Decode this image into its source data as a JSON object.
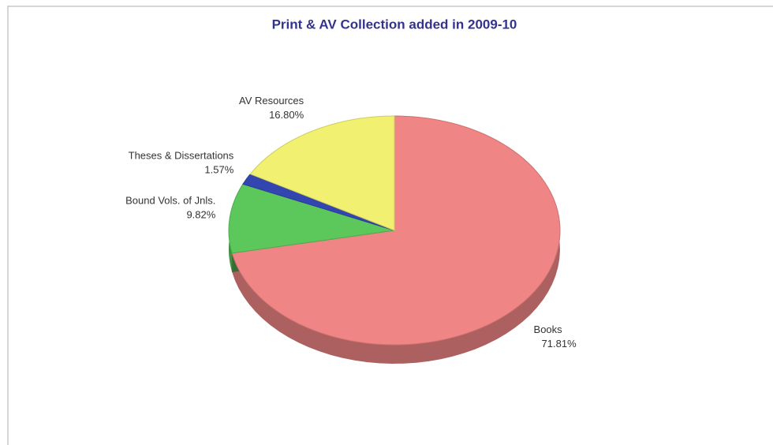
{
  "chart_data": {
    "type": "pie",
    "title": "Print & AV Collection added in 2009-10",
    "categories": [
      "Books",
      "Bound Vols. of Jnls.",
      "Theses & Dissertations",
      "AV Resources"
    ],
    "values": [
      71.81,
      9.82,
      1.57,
      16.8
    ],
    "value_labels": [
      "71.81%",
      "9.82%",
      "1.57%",
      "16.80%"
    ],
    "colors": [
      "#f08585",
      "#5cc85c",
      "#3346b0",
      "#f2f070"
    ]
  }
}
